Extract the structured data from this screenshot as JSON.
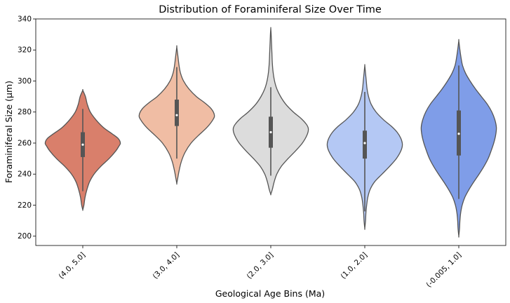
{
  "chart_data": {
    "type": "violin",
    "title": "Distribution of Foraminiferal Size Over Time",
    "xlabel": "Geological Age Bins (Ma)",
    "ylabel": "Foraminiferal Size (µm)",
    "ylim": [
      194,
      340
    ],
    "yticks": [
      200,
      220,
      240,
      260,
      280,
      300,
      320,
      340
    ],
    "grid": false,
    "legend": "none",
    "categories": [
      "(4.0, 5.0]",
      "(3.0, 4.0]",
      "(2.0, 3.0]",
      "(1.0, 2.0]",
      "(-0.005, 1.0]"
    ],
    "colors": [
      "#d97f6b",
      "#f0bda4",
      "#dcdcdc",
      "#b4c8f4",
      "#7f9de8"
    ],
    "violins": [
      {
        "category": "(4.0, 5.0]",
        "min": 217,
        "max": 294,
        "whisker_low": 229,
        "whisker_high": 282,
        "q1": 251,
        "median": 259,
        "q3": 267,
        "profile": [
          [
            217,
            0.0
          ],
          [
            220,
            0.03
          ],
          [
            225,
            0.06
          ],
          [
            230,
            0.11
          ],
          [
            235,
            0.18
          ],
          [
            240,
            0.3
          ],
          [
            245,
            0.48
          ],
          [
            250,
            0.7
          ],
          [
            255,
            0.88
          ],
          [
            258,
            0.96
          ],
          [
            260,
            1.0
          ],
          [
            263,
            0.94
          ],
          [
            266,
            0.78
          ],
          [
            270,
            0.55
          ],
          [
            275,
            0.35
          ],
          [
            280,
            0.2
          ],
          [
            285,
            0.12
          ],
          [
            290,
            0.07
          ],
          [
            294,
            0.0
          ]
        ]
      },
      {
        "category": "(3.0, 4.0]",
        "min": 234,
        "max": 322,
        "whisker_low": 250,
        "whisker_high": 309,
        "q1": 271,
        "median": 278,
        "q3": 288,
        "profile": [
          [
            234,
            0.0
          ],
          [
            238,
            0.03
          ],
          [
            242,
            0.06
          ],
          [
            248,
            0.12
          ],
          [
            254,
            0.22
          ],
          [
            260,
            0.38
          ],
          [
            265,
            0.58
          ],
          [
            270,
            0.8
          ],
          [
            275,
            0.96
          ],
          [
            278,
            1.0
          ],
          [
            282,
            0.92
          ],
          [
            286,
            0.74
          ],
          [
            290,
            0.52
          ],
          [
            295,
            0.32
          ],
          [
            300,
            0.18
          ],
          [
            305,
            0.1
          ],
          [
            310,
            0.06
          ],
          [
            316,
            0.03
          ],
          [
            322,
            0.0
          ]
        ]
      },
      {
        "category": "(2.0, 3.0]",
        "min": 227,
        "max": 334,
        "whisker_low": 239,
        "whisker_high": 296,
        "q1": 257,
        "median": 267,
        "q3": 277,
        "profile": [
          [
            227,
            0.0
          ],
          [
            230,
            0.04
          ],
          [
            235,
            0.09
          ],
          [
            240,
            0.16
          ],
          [
            245,
            0.28
          ],
          [
            250,
            0.46
          ],
          [
            255,
            0.66
          ],
          [
            260,
            0.84
          ],
          [
            265,
            0.96
          ],
          [
            269,
            1.0
          ],
          [
            272,
            0.95
          ],
          [
            276,
            0.8
          ],
          [
            280,
            0.6
          ],
          [
            285,
            0.4
          ],
          [
            290,
            0.26
          ],
          [
            295,
            0.16
          ],
          [
            300,
            0.1
          ],
          [
            306,
            0.06
          ],
          [
            312,
            0.04
          ],
          [
            318,
            0.03
          ],
          [
            324,
            0.02
          ],
          [
            330,
            0.01
          ],
          [
            334,
            0.0
          ]
        ]
      },
      {
        "category": "(1.0, 2.0]",
        "min": 205,
        "max": 310,
        "whisker_low": 216,
        "whisker_high": 293,
        "q1": 250,
        "median": 260,
        "q3": 268,
        "profile": [
          [
            205,
            0.0
          ],
          [
            210,
            0.02
          ],
          [
            215,
            0.03
          ],
          [
            220,
            0.05
          ],
          [
            225,
            0.08
          ],
          [
            230,
            0.14
          ],
          [
            235,
            0.26
          ],
          [
            240,
            0.46
          ],
          [
            245,
            0.66
          ],
          [
            250,
            0.84
          ],
          [
            255,
            0.96
          ],
          [
            259,
            1.0
          ],
          [
            263,
            0.96
          ],
          [
            267,
            0.86
          ],
          [
            271,
            0.7
          ],
          [
            275,
            0.5
          ],
          [
            280,
            0.3
          ],
          [
            285,
            0.17
          ],
          [
            290,
            0.1
          ],
          [
            295,
            0.06
          ],
          [
            300,
            0.04
          ],
          [
            305,
            0.02
          ],
          [
            310,
            0.0
          ]
        ]
      },
      {
        "category": "(-0.005, 1.0]",
        "min": 200,
        "max": 326,
        "whisker_low": 224,
        "whisker_high": 310,
        "q1": 252,
        "median": 266,
        "q3": 281,
        "profile": [
          [
            200,
            0.0
          ],
          [
            205,
            0.02
          ],
          [
            210,
            0.03
          ],
          [
            215,
            0.05
          ],
          [
            220,
            0.09
          ],
          [
            225,
            0.16
          ],
          [
            230,
            0.27
          ],
          [
            235,
            0.4
          ],
          [
            240,
            0.54
          ],
          [
            245,
            0.67
          ],
          [
            250,
            0.78
          ],
          [
            255,
            0.86
          ],
          [
            260,
            0.93
          ],
          [
            265,
            0.98
          ],
          [
            270,
            1.0
          ],
          [
            275,
            0.96
          ],
          [
            280,
            0.88
          ],
          [
            285,
            0.76
          ],
          [
            290,
            0.6
          ],
          [
            295,
            0.44
          ],
          [
            300,
            0.3
          ],
          [
            305,
            0.18
          ],
          [
            310,
            0.1
          ],
          [
            315,
            0.06
          ],
          [
            320,
            0.03
          ],
          [
            326,
            0.0
          ]
        ]
      }
    ]
  }
}
